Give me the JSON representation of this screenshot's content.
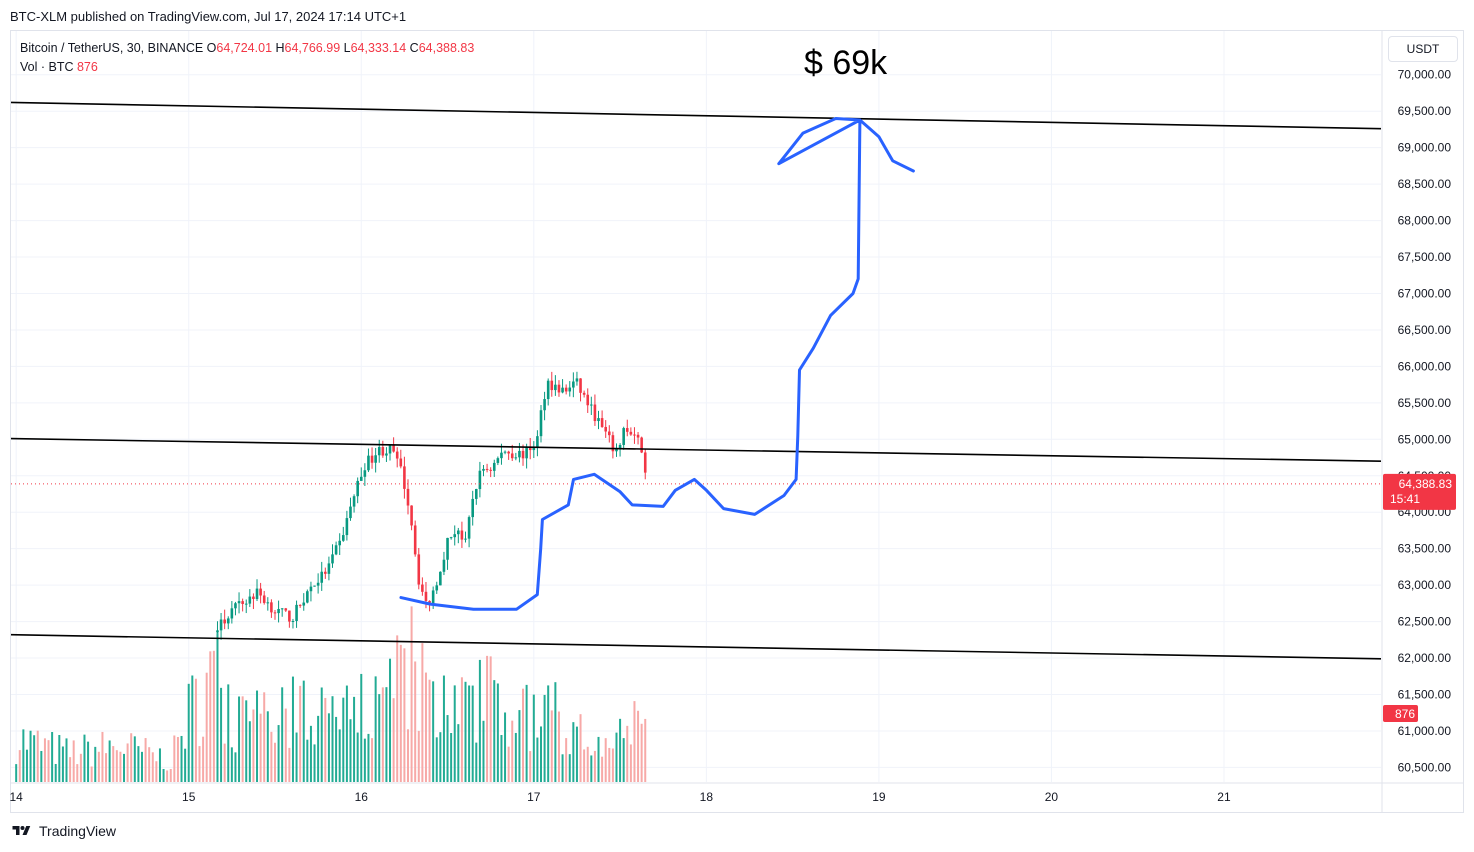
{
  "publish_line": "BTC-XLM published on TradingView.com, Jul 17, 2024 17:14 UTC+1",
  "legend": {
    "symbol": "Bitcoin / TetherUS, 30, BINANCE",
    "o_label": "O",
    "o_value": "64,724.01",
    "h_label": "H",
    "h_value": "64,766.99",
    "l_label": "L",
    "l_value": "64,333.14",
    "c_label": "C",
    "c_value": "64,388.83",
    "vol_label": "Vol · BTC",
    "vol_value": "876"
  },
  "currency_button": "USDT",
  "annotation": "$ 69k",
  "footer": {
    "brand": "TradingView"
  },
  "colors": {
    "up": "#089981",
    "down": "#f23645",
    "vol_up": "#22ab94",
    "vol_down": "#f7a9a7",
    "drawing": "#2962ff",
    "trendline": "#000000"
  },
  "chart_data": {
    "type": "candlestick",
    "timeframe_minutes": 30,
    "y_range": [
      60300,
      70600
    ],
    "y_ticks": [
      {
        "value": 60500,
        "label": "60,500.00"
      },
      {
        "value": 61000,
        "label": "61,000.00"
      },
      {
        "value": 61500,
        "label": "61,500.00"
      },
      {
        "value": 62000,
        "label": "62,000.00"
      },
      {
        "value": 62500,
        "label": "62,500.00"
      },
      {
        "value": 63000,
        "label": "63,000.00"
      },
      {
        "value": 63500,
        "label": "63,500.00"
      },
      {
        "value": 64000,
        "label": "64,000.00"
      },
      {
        "value": 64500,
        "label": "64,500.00"
      },
      {
        "value": 65000,
        "label": "65,000.00"
      },
      {
        "value": 65500,
        "label": "65,500.00"
      },
      {
        "value": 66000,
        "label": "66,000.00"
      },
      {
        "value": 66500,
        "label": "66,500.00"
      },
      {
        "value": 67000,
        "label": "67,000.00"
      },
      {
        "value": 67500,
        "label": "67,500.00"
      },
      {
        "value": 68000,
        "label": "68,000.00"
      },
      {
        "value": 68500,
        "label": "68,500.00"
      },
      {
        "value": 69000,
        "label": "69,000.00"
      },
      {
        "value": 69500,
        "label": "69,500.00"
      },
      {
        "value": 70000,
        "label": "70,000.00"
      }
    ],
    "x_ticks": [
      {
        "day": 14,
        "label": "14"
      },
      {
        "day": 15,
        "label": "15"
      },
      {
        "day": 16,
        "label": "16"
      },
      {
        "day": 17,
        "label": "17"
      },
      {
        "day": 18,
        "label": "18"
      },
      {
        "day": 19,
        "label": "19"
      },
      {
        "day": 20,
        "label": "20"
      },
      {
        "day": 21,
        "label": "21"
      }
    ],
    "x_range_days": [
      13.97,
      21.91
    ],
    "last_price": {
      "value": 64388.83,
      "label": "64,388.83",
      "countdown": "15:41"
    },
    "volume_last": {
      "value": 876,
      "label": "876"
    },
    "close_path": [
      [
        15.15,
        62350
      ],
      [
        15.25,
        62650
      ],
      [
        15.4,
        62900
      ],
      [
        15.5,
        62650
      ],
      [
        15.6,
        62550
      ],
      [
        15.7,
        62950
      ],
      [
        15.8,
        63200
      ],
      [
        15.88,
        63600
      ],
      [
        15.96,
        64250
      ],
      [
        16.02,
        64650
      ],
      [
        16.1,
        64850
      ],
      [
        16.18,
        64850
      ],
      [
        16.24,
        64500
      ],
      [
        16.29,
        63900
      ],
      [
        16.33,
        63100
      ],
      [
        16.38,
        62700
      ],
      [
        16.43,
        63000
      ],
      [
        16.5,
        63600
      ],
      [
        16.56,
        63800
      ],
      [
        16.6,
        63500
      ],
      [
        16.65,
        64250
      ],
      [
        16.7,
        64600
      ],
      [
        16.75,
        64600
      ],
      [
        16.83,
        64850
      ],
      [
        16.88,
        64800
      ],
      [
        16.95,
        64800
      ],
      [
        17.02,
        65000
      ],
      [
        17.05,
        65500
      ],
      [
        17.08,
        65800
      ],
      [
        17.13,
        65700
      ],
      [
        17.18,
        65650
      ],
      [
        17.24,
        65800
      ],
      [
        17.3,
        65550
      ],
      [
        17.36,
        65300
      ],
      [
        17.42,
        65050
      ],
      [
        17.48,
        64800
      ],
      [
        17.52,
        65150
      ],
      [
        17.58,
        65000
      ],
      [
        17.62,
        64950
      ],
      [
        17.66,
        64389
      ]
    ],
    "volume_path": [
      [
        14.0,
        180
      ],
      [
        14.3,
        120
      ],
      [
        14.6,
        150
      ],
      [
        14.9,
        90
      ],
      [
        15.0,
        280
      ],
      [
        15.15,
        450
      ],
      [
        15.3,
        230
      ],
      [
        15.5,
        250
      ],
      [
        15.7,
        320
      ],
      [
        15.9,
        260
      ],
      [
        16.0,
        310
      ],
      [
        16.15,
        360
      ],
      [
        16.3,
        480
      ],
      [
        16.45,
        320
      ],
      [
        16.6,
        300
      ],
      [
        16.75,
        420
      ],
      [
        16.9,
        260
      ],
      [
        17.05,
        300
      ],
      [
        17.2,
        230
      ],
      [
        17.35,
        260
      ],
      [
        17.5,
        220
      ],
      [
        17.66,
        260
      ]
    ],
    "trendlines": [
      {
        "name": "upper",
        "points": [
          [
            13.97,
            69620
          ],
          [
            21.91,
            69260
          ]
        ]
      },
      {
        "name": "middle",
        "points": [
          [
            13.97,
            65010
          ],
          [
            21.91,
            64700
          ]
        ]
      },
      {
        "name": "lower",
        "points": [
          [
            13.97,
            62320
          ],
          [
            21.91,
            61990
          ]
        ]
      }
    ],
    "projection_drawing": [
      [
        16.23,
        62830
      ],
      [
        16.4,
        62740
      ],
      [
        16.65,
        62670
      ],
      [
        16.9,
        62670
      ],
      [
        17.02,
        62870
      ],
      [
        17.04,
        63500
      ],
      [
        17.05,
        63900
      ],
      [
        17.2,
        64100
      ],
      [
        17.23,
        64450
      ],
      [
        17.35,
        64520
      ],
      [
        17.5,
        64280
      ],
      [
        17.57,
        64100
      ],
      [
        17.75,
        64080
      ],
      [
        17.82,
        64300
      ],
      [
        17.93,
        64450
      ],
      [
        18.0,
        64300
      ],
      [
        18.1,
        64050
      ],
      [
        18.28,
        63970
      ],
      [
        18.45,
        64230
      ],
      [
        18.52,
        64450
      ],
      [
        18.53,
        65050
      ],
      [
        18.54,
        65950
      ],
      [
        18.62,
        66250
      ],
      [
        18.72,
        66700
      ],
      [
        18.85,
        67000
      ],
      [
        18.88,
        67200
      ],
      [
        18.89,
        69380
      ],
      [
        18.75,
        69400
      ],
      [
        18.56,
        69200
      ],
      [
        18.42,
        68780
      ],
      [
        18.89,
        69380
      ],
      [
        19.0,
        69150
      ],
      [
        19.08,
        68820
      ],
      [
        19.2,
        68680
      ]
    ]
  }
}
